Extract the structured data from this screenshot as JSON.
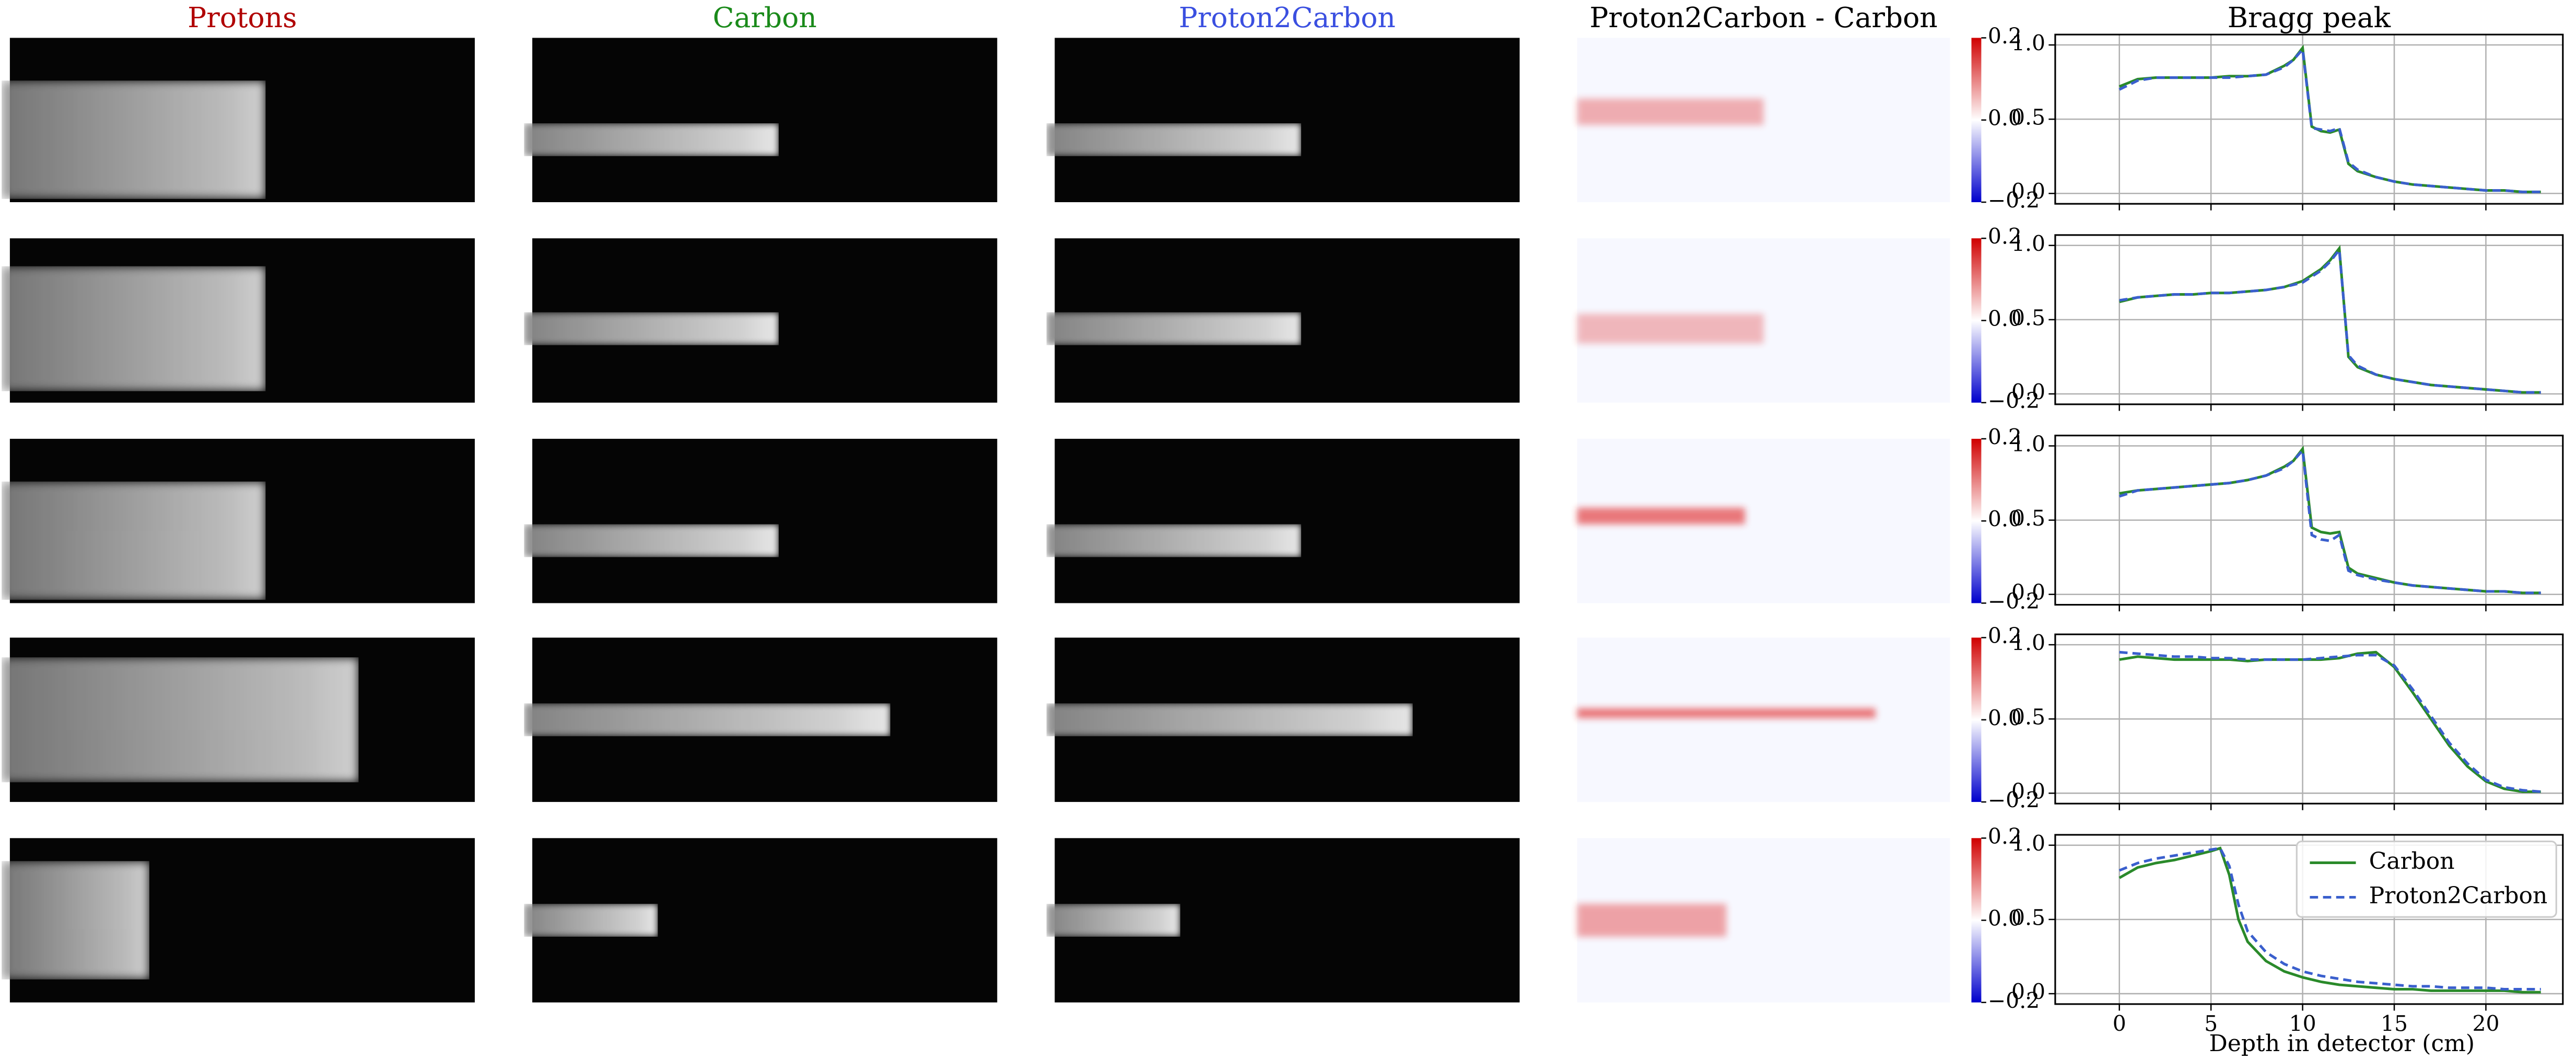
{
  "columns": [
    {
      "title": "Protons",
      "color": "#b00000"
    },
    {
      "title": "Carbon",
      "color": "#1a8a1a"
    },
    {
      "title": "Proton2Carbon",
      "color": "#3a4fe0"
    },
    {
      "title": "Proton2Carbon - Carbon",
      "color": "#000000"
    }
  ],
  "colorbar": {
    "lim": [
      -0.2,
      0.2
    ],
    "ticks": [
      0.2,
      {
        "value": 0,
        "label": "0.0"
      },
      {
        "value": -0.2,
        "label": "−0.2"
      }
    ]
  },
  "chart_data": [
    {
      "type": "line",
      "title": "Bragg peak",
      "x": [
        0,
        1,
        2,
        3,
        4,
        5,
        6,
        7,
        8,
        9,
        9.5,
        10,
        10.5,
        11,
        11.5,
        12,
        12.5,
        13,
        14,
        15,
        16,
        17,
        18,
        19,
        20,
        21,
        22,
        23
      ],
      "series": [
        {
          "color": "#2a8a2a",
          "style": "solid",
          "values": [
            0.72,
            0.77,
            0.78,
            0.78,
            0.78,
            0.78,
            0.79,
            0.79,
            0.8,
            0.86,
            0.9,
            0.98,
            0.45,
            0.42,
            0.41,
            0.43,
            0.2,
            0.15,
            0.11,
            0.08,
            0.06,
            0.05,
            0.04,
            0.03,
            0.02,
            0.02,
            0.01,
            0.01
          ]
        },
        {
          "color": "#3a5fcd",
          "style": "dashed",
          "values": [
            0.7,
            0.76,
            0.78,
            0.78,
            0.78,
            0.78,
            0.78,
            0.79,
            0.8,
            0.85,
            0.9,
            0.97,
            0.44,
            0.43,
            0.42,
            0.44,
            0.21,
            0.16,
            0.11,
            0.08,
            0.06,
            0.05,
            0.04,
            0.03,
            0.02,
            0.02,
            0.01,
            0.01
          ]
        }
      ],
      "xlim": [
        -3.5,
        24.2
      ],
      "ylim": [
        -0.07,
        1.07
      ],
      "xticks": [
        0,
        5,
        10,
        15,
        20
      ],
      "yticks": [
        {
          "value": 0,
          "label": "0.0"
        },
        {
          "value": 0.5,
          "label": "0.5"
        },
        {
          "value": 1,
          "label": "1.0"
        }
      ],
      "grid": true
    },
    {
      "type": "line",
      "x": [
        0,
        1,
        2,
        3,
        4,
        5,
        6,
        7,
        8,
        9,
        10,
        11,
        11.5,
        12,
        12.5,
        13,
        14,
        15,
        16,
        17,
        18,
        19,
        20,
        21,
        22,
        23
      ],
      "series": [
        {
          "color": "#2a8a2a",
          "style": "solid",
          "values": [
            0.62,
            0.65,
            0.66,
            0.67,
            0.67,
            0.68,
            0.68,
            0.69,
            0.7,
            0.72,
            0.76,
            0.84,
            0.9,
            0.98,
            0.25,
            0.18,
            0.13,
            0.1,
            0.08,
            0.06,
            0.05,
            0.04,
            0.03,
            0.02,
            0.01,
            0.01
          ]
        },
        {
          "color": "#3a5fcd",
          "style": "dashed",
          "values": [
            0.63,
            0.65,
            0.66,
            0.67,
            0.67,
            0.68,
            0.68,
            0.69,
            0.7,
            0.72,
            0.75,
            0.83,
            0.89,
            0.97,
            0.26,
            0.19,
            0.13,
            0.1,
            0.08,
            0.06,
            0.05,
            0.04,
            0.03,
            0.02,
            0.01,
            0.01
          ]
        }
      ],
      "xlim": [
        -3.5,
        24.2
      ],
      "ylim": [
        -0.07,
        1.07
      ],
      "xticks": [
        0,
        5,
        10,
        15,
        20
      ],
      "yticks": [
        {
          "value": 0,
          "label": "0.0"
        },
        {
          "value": 0.5,
          "label": "0.5"
        },
        {
          "value": 1,
          "label": "1.0"
        }
      ],
      "grid": true
    },
    {
      "type": "line",
      "x": [
        0,
        1,
        2,
        3,
        4,
        5,
        6,
        7,
        8,
        9,
        9.5,
        10,
        10.5,
        11,
        11.5,
        12,
        12.5,
        13,
        14,
        15,
        16,
        17,
        18,
        19,
        20,
        21,
        22,
        23
      ],
      "series": [
        {
          "color": "#2a8a2a",
          "style": "solid",
          "values": [
            0.68,
            0.7,
            0.71,
            0.72,
            0.73,
            0.74,
            0.75,
            0.77,
            0.8,
            0.86,
            0.9,
            0.98,
            0.45,
            0.42,
            0.41,
            0.42,
            0.18,
            0.14,
            0.11,
            0.08,
            0.06,
            0.05,
            0.04,
            0.03,
            0.02,
            0.02,
            0.01,
            0.01
          ]
        },
        {
          "color": "#3a5fcd",
          "style": "dashed",
          "values": [
            0.66,
            0.7,
            0.71,
            0.72,
            0.73,
            0.74,
            0.75,
            0.77,
            0.8,
            0.85,
            0.9,
            0.97,
            0.4,
            0.37,
            0.36,
            0.4,
            0.16,
            0.13,
            0.1,
            0.08,
            0.06,
            0.05,
            0.04,
            0.03,
            0.02,
            0.02,
            0.01,
            0.01
          ]
        }
      ],
      "xlim": [
        -3.5,
        24.2
      ],
      "ylim": [
        -0.07,
        1.07
      ],
      "xticks": [
        0,
        5,
        10,
        15,
        20
      ],
      "yticks": [
        {
          "value": 0,
          "label": "0.0"
        },
        {
          "value": 0.5,
          "label": "0.5"
        },
        {
          "value": 1,
          "label": "1.0"
        }
      ],
      "grid": true
    },
    {
      "type": "line",
      "x": [
        0,
        1,
        2,
        3,
        4,
        5,
        6,
        7,
        8,
        9,
        10,
        11,
        12,
        13,
        14,
        15,
        16,
        17,
        18,
        19,
        20,
        21,
        22,
        23
      ],
      "series": [
        {
          "color": "#2a8a2a",
          "style": "solid",
          "values": [
            0.9,
            0.92,
            0.91,
            0.9,
            0.9,
            0.9,
            0.9,
            0.89,
            0.9,
            0.9,
            0.9,
            0.9,
            0.91,
            0.94,
            0.95,
            0.85,
            0.68,
            0.5,
            0.32,
            0.18,
            0.08,
            0.03,
            0.01,
            0.01
          ]
        },
        {
          "color": "#3a5fcd",
          "style": "dashed",
          "values": [
            0.95,
            0.94,
            0.93,
            0.92,
            0.92,
            0.91,
            0.91,
            0.9,
            0.9,
            0.9,
            0.9,
            0.91,
            0.92,
            0.93,
            0.93,
            0.86,
            0.7,
            0.52,
            0.34,
            0.2,
            0.09,
            0.04,
            0.02,
            0.01
          ]
        }
      ],
      "xlim": [
        -3.5,
        24.2
      ],
      "ylim": [
        -0.07,
        1.07
      ],
      "xticks": [
        0,
        5,
        10,
        15,
        20
      ],
      "yticks": [
        {
          "value": 0,
          "label": "0.0"
        },
        {
          "value": 0.5,
          "label": "0.5"
        },
        {
          "value": 1,
          "label": "1.0"
        }
      ],
      "grid": true
    },
    {
      "type": "line",
      "xlabel": "Depth in detector (cm)",
      "legend": "upper right",
      "x": [
        0,
        1,
        2,
        3,
        4,
        5,
        5.5,
        6,
        6.5,
        7,
        8,
        9,
        10,
        11,
        12,
        13,
        14,
        15,
        16,
        17,
        18,
        19,
        20,
        21,
        22,
        23
      ],
      "series": [
        {
          "name": "Carbon",
          "color": "#2a8a2a",
          "style": "solid",
          "values": [
            0.78,
            0.85,
            0.88,
            0.9,
            0.93,
            0.96,
            0.98,
            0.8,
            0.5,
            0.35,
            0.22,
            0.15,
            0.11,
            0.08,
            0.06,
            0.05,
            0.04,
            0.03,
            0.03,
            0.02,
            0.02,
            0.02,
            0.02,
            0.02,
            0.01,
            0.01
          ]
        },
        {
          "name": "Proton2Carbon",
          "color": "#3a5fcd",
          "style": "dashed",
          "values": [
            0.83,
            0.88,
            0.91,
            0.93,
            0.95,
            0.97,
            0.98,
            0.86,
            0.6,
            0.42,
            0.28,
            0.2,
            0.15,
            0.12,
            0.1,
            0.08,
            0.07,
            0.06,
            0.05,
            0.05,
            0.04,
            0.04,
            0.04,
            0.03,
            0.03,
            0.03
          ]
        }
      ],
      "xlim": [
        -3.5,
        24.2
      ],
      "ylim": [
        -0.07,
        1.07
      ],
      "xticks": [
        0,
        5,
        10,
        15,
        20
      ],
      "yticks": [
        {
          "value": 0,
          "label": "0.0"
        },
        {
          "value": 0.5,
          "label": "0.5"
        },
        {
          "value": 1,
          "label": "1.0"
        }
      ],
      "grid": true
    }
  ]
}
